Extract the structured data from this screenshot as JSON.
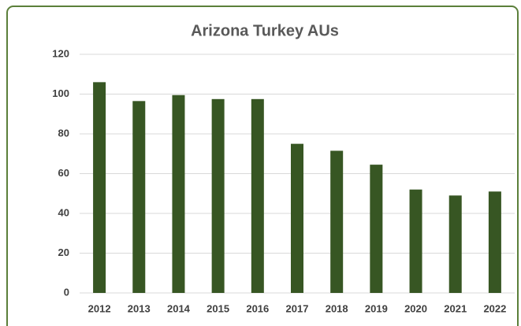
{
  "chart_data": {
    "type": "bar",
    "title": "Arizona Turkey AUs",
    "categories": [
      "2012",
      "2013",
      "2014",
      "2015",
      "2016",
      "2017",
      "2018",
      "2019",
      "2020",
      "2021",
      "2022"
    ],
    "values": [
      106,
      96.5,
      99.5,
      97.5,
      97.5,
      75,
      71.5,
      64.5,
      52,
      49,
      51
    ],
    "color": "#375623",
    "ylim": [
      0,
      120
    ],
    "yticks": [
      0,
      20,
      40,
      60,
      80,
      100,
      120
    ],
    "grid": true
  }
}
